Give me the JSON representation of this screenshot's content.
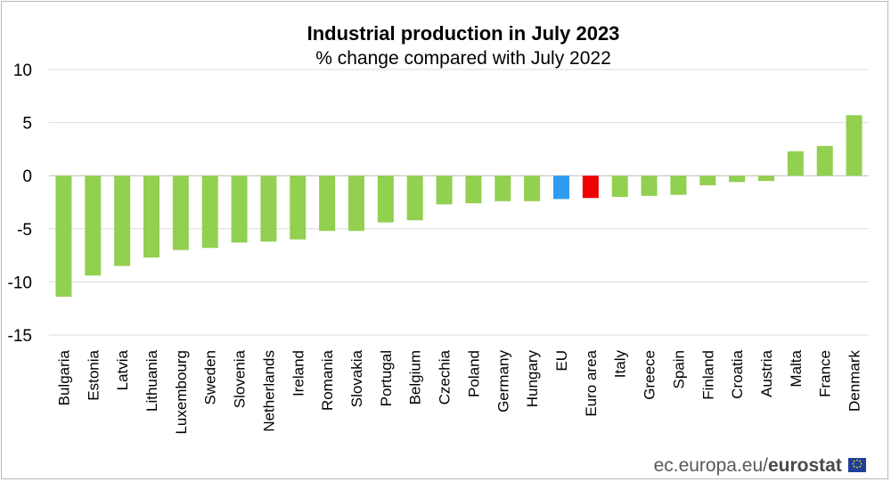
{
  "chart_data": {
    "type": "bar",
    "title": "Industrial production in July 2023",
    "subtitle": "% change compared with July 2022",
    "xlabel": "",
    "ylabel": "",
    "ylim": [
      -15,
      10
    ],
    "yticks": [
      -15,
      -10,
      -5,
      0,
      5,
      10
    ],
    "grid": true,
    "categories": [
      "Bulgaria",
      "Estonia",
      "Latvia",
      "Lithuania",
      "Luxembourg",
      "Sweden",
      "Slovenia",
      "Netherlands",
      "Ireland",
      "Romania",
      "Slovakia",
      "Portugal",
      "Belgium",
      "Czechia",
      "Poland",
      "Germany",
      "Hungary",
      "EU",
      "Euro area",
      "Italy",
      "Greece",
      "Spain",
      "Finland",
      "Croatia",
      "Austria",
      "Malta",
      "France",
      "Denmark"
    ],
    "values": [
      -11.4,
      -9.4,
      -8.5,
      -7.7,
      -7.0,
      -6.8,
      -6.3,
      -6.2,
      -6.0,
      -5.2,
      -5.2,
      -4.4,
      -4.2,
      -2.7,
      -2.6,
      -2.4,
      -2.4,
      -2.2,
      -2.1,
      -2.0,
      -1.9,
      -1.8,
      -0.9,
      -0.6,
      -0.5,
      2.3,
      2.8,
      5.7
    ],
    "colors": {
      "default": "#92d050",
      "EU": "#2f9bf0",
      "Euro area": "#f00000"
    }
  },
  "footer": {
    "source": "ec.europa.eu/",
    "brand": "eurostat",
    "flag_icon": "eu-flag-icon"
  }
}
